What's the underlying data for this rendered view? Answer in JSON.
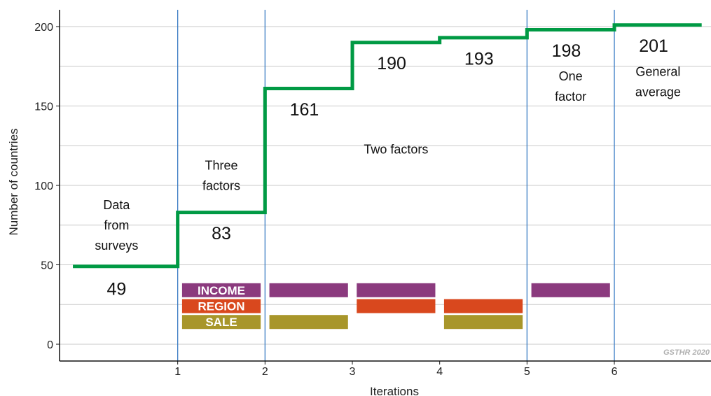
{
  "chart_data": {
    "type": "line",
    "step": "post",
    "xlabel": "Iterations",
    "ylabel": "Number of countries",
    "x_ticks": [
      1,
      2,
      3,
      4,
      5,
      6
    ],
    "y_ticks": [
      0,
      50,
      100,
      150,
      200
    ],
    "xlim": [
      -1,
      6.1
    ],
    "ylim": [
      -10,
      212
    ],
    "grid": "horizontal",
    "series": [
      {
        "x": [
          -0.2,
          1,
          2,
          3,
          4,
          5,
          6,
          7
        ],
        "values": [
          49,
          83,
          161,
          190,
          193,
          198,
          201,
          201
        ],
        "color": "#009a44"
      }
    ],
    "step_value_labels": [
      {
        "x": 0.3,
        "y": 35,
        "text": "49"
      },
      {
        "x": 1.5,
        "y": 70,
        "text": "83"
      },
      {
        "x": 2.45,
        "y": 148,
        "text": "161"
      },
      {
        "x": 3.45,
        "y": 177,
        "text": "190"
      },
      {
        "x": 4.45,
        "y": 180,
        "text": "193"
      },
      {
        "x": 5.45,
        "y": 185,
        "text": "198"
      },
      {
        "x": 6.45,
        "y": 188,
        "text": "201"
      }
    ],
    "annotations": [
      {
        "x": 0.3,
        "y": 85,
        "lines": [
          "Data",
          "from",
          "surveys"
        ]
      },
      {
        "x": 1.5,
        "y": 110,
        "lines": [
          "Three",
          "factors"
        ]
      },
      {
        "x": 3.5,
        "y": 120,
        "lines": [
          "Two factors"
        ]
      },
      {
        "x": 5.5,
        "y": 166,
        "lines": [
          "One",
          "factor"
        ]
      },
      {
        "x": 6.5,
        "y": 169,
        "lines": [
          "General",
          "average"
        ]
      }
    ],
    "vertical_lines": [
      1,
      2,
      5,
      6
    ],
    "factor_bars": [
      {
        "factor": "INCOME",
        "y": 34,
        "color": "#8b3a7e",
        "x_ranges": [
          [
            1.05,
            1.95
          ],
          [
            2.05,
            2.95
          ],
          [
            3.05,
            3.95
          ],
          [
            5.05,
            5.95
          ]
        ]
      },
      {
        "factor": "REGION",
        "y": 24,
        "color": "#d9481e",
        "x_ranges": [
          [
            1.05,
            1.95
          ],
          [
            3.05,
            3.95
          ],
          [
            4.05,
            4.95
          ]
        ]
      },
      {
        "factor": "SALE",
        "y": 14,
        "color": "#a8962a",
        "x_ranges": [
          [
            1.05,
            1.95
          ],
          [
            2.05,
            2.95
          ],
          [
            4.05,
            4.95
          ]
        ]
      }
    ],
    "watermark": "GSTHR 2020"
  }
}
